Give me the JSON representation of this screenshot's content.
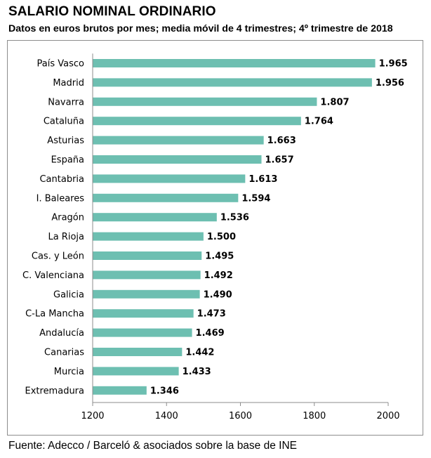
{
  "header": {
    "title": "SALARIO NOMINAL ORDINARIO",
    "subtitle": "Datos en euros brutos por mes; media móvil de 4 trimestres; 4º trimestre de 2018"
  },
  "footer": {
    "source": "Fuente: Adecco / Barceló & asociados sobre la base de INE"
  },
  "chart_data": {
    "type": "bar",
    "orientation": "horizontal",
    "categories": [
      "País Vasco",
      "Madrid",
      "Navarra",
      "Cataluña",
      "Asturias",
      "España",
      "Cantabria",
      "I. Baleares",
      "Aragón",
      "La Rioja",
      "Cas. y León",
      "C. Valenciana",
      "Galicia",
      "C-La Mancha",
      "Andalucía",
      "Canarias",
      "Murcia",
      "Extremadura"
    ],
    "values": [
      1965,
      1956,
      1807,
      1764,
      1663,
      1657,
      1613,
      1594,
      1536,
      1500,
      1495,
      1492,
      1490,
      1473,
      1469,
      1442,
      1433,
      1346
    ],
    "value_labels": [
      "1.965",
      "1.956",
      "1.807",
      "1.764",
      "1.663",
      "1.657",
      "1.613",
      "1.594",
      "1.536",
      "1.500",
      "1.495",
      "1.492",
      "1.490",
      "1.473",
      "1.469",
      "1.442",
      "1.433",
      "1.346"
    ],
    "xlim": [
      1200,
      2000
    ],
    "xticks": [
      1200,
      1400,
      1600,
      1800,
      2000
    ],
    "xtick_labels": [
      "1200",
      "1400",
      "1600",
      "1800",
      "2000"
    ],
    "bar_color": "#6dbfb1",
    "grid": false
  }
}
